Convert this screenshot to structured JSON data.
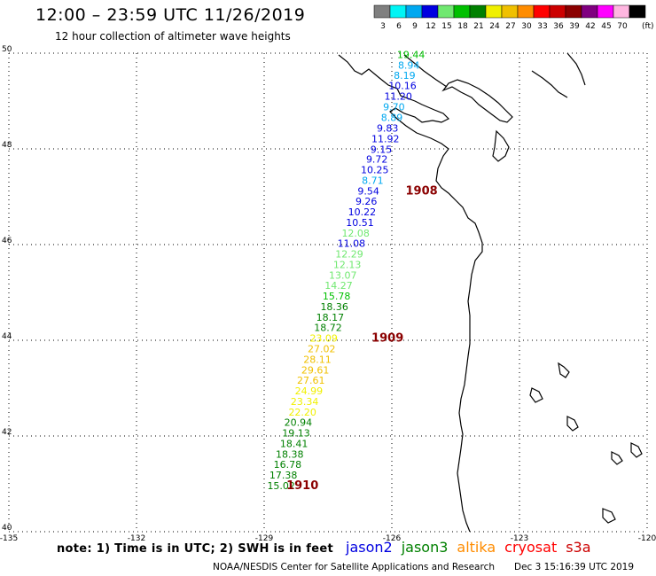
{
  "header": {
    "title": "12:00 – 23:59 UTC 11/26/2019",
    "subtitle": "12 hour collection of altimeter wave heights"
  },
  "colorbar": {
    "unit": "(ft)",
    "bins": [
      {
        "label": "3",
        "color": "#7f7f7f"
      },
      {
        "label": "6",
        "color": "#00f5f5"
      },
      {
        "label": "9",
        "color": "#00a8f0"
      },
      {
        "label": "12",
        "color": "#0000e0"
      },
      {
        "label": "15",
        "color": "#70e870"
      },
      {
        "label": "18",
        "color": "#00c000"
      },
      {
        "label": "21",
        "color": "#008000"
      },
      {
        "label": "24",
        "color": "#f0f000"
      },
      {
        "label": "27",
        "color": "#f0c000"
      },
      {
        "label": "30",
        "color": "#ff8c00"
      },
      {
        "label": "33",
        "color": "#ff0000"
      },
      {
        "label": "36",
        "color": "#cc0000"
      },
      {
        "label": "39",
        "color": "#8b0000"
      },
      {
        "label": "42",
        "color": "#800080"
      },
      {
        "label": "45",
        "color": "#ff00ff"
      },
      {
        "label": "70",
        "color": "#ffb6e0"
      },
      {
        "label": "",
        "color": "#000000"
      }
    ]
  },
  "axes": {
    "lon_ticks": [
      "-135",
      "-132",
      "-129",
      "-126",
      "-123",
      "-120"
    ],
    "lat_ticks": [
      "40",
      "42",
      "44",
      "46",
      "48",
      "50"
    ],
    "lon_range": [
      -135,
      -120
    ],
    "lat_range": [
      40,
      50
    ]
  },
  "observations": [
    {
      "v": "19.44",
      "lon": -125.55,
      "lat": 49.9,
      "color": "#00c000"
    },
    {
      "v": "8.94",
      "lon": -125.6,
      "lat": 49.68,
      "color": "#00a8f0"
    },
    {
      "v": "8.19",
      "lon": -125.7,
      "lat": 49.46,
      "color": "#00a8f0"
    },
    {
      "v": "10.16",
      "lon": -125.75,
      "lat": 49.25,
      "color": "#0000e0"
    },
    {
      "v": "11.20",
      "lon": -125.85,
      "lat": 49.03,
      "color": "#0000e0"
    },
    {
      "v": "9.70",
      "lon": -125.95,
      "lat": 48.81,
      "color": "#00a8f0"
    },
    {
      "v": "8.89",
      "lon": -126.0,
      "lat": 48.58,
      "color": "#00a8f0"
    },
    {
      "v": "9.83",
      "lon": -126.1,
      "lat": 48.36,
      "color": "#0000e0"
    },
    {
      "v": "11.92",
      "lon": -126.15,
      "lat": 48.14,
      "color": "#0000e0"
    },
    {
      "v": "9.15",
      "lon": -126.25,
      "lat": 47.92,
      "color": "#0000e0"
    },
    {
      "v": "9.72",
      "lon": -126.35,
      "lat": 47.71,
      "color": "#0000e0"
    },
    {
      "v": "10.25",
      "lon": -126.4,
      "lat": 47.49,
      "color": "#0000e0"
    },
    {
      "v": "8.71",
      "lon": -126.45,
      "lat": 47.27,
      "color": "#00a8f0"
    },
    {
      "v": "9.54",
      "lon": -126.55,
      "lat": 47.05,
      "color": "#0000e0"
    },
    {
      "v": "9.26",
      "lon": -126.6,
      "lat": 46.83,
      "color": "#0000e0"
    },
    {
      "v": "10.22",
      "lon": -126.7,
      "lat": 46.61,
      "color": "#0000e0"
    },
    {
      "v": "10.51",
      "lon": -126.75,
      "lat": 46.39,
      "color": "#0000e0"
    },
    {
      "v": "12.08",
      "lon": -126.85,
      "lat": 46.17,
      "color": "#70e870"
    },
    {
      "v": "11.08",
      "lon": -126.95,
      "lat": 45.95,
      "color": "#0000e0"
    },
    {
      "v": "12.29",
      "lon": -127.0,
      "lat": 45.73,
      "color": "#70e870"
    },
    {
      "v": "12.13",
      "lon": -127.05,
      "lat": 45.51,
      "color": "#70e870"
    },
    {
      "v": "13.07",
      "lon": -127.15,
      "lat": 45.29,
      "color": "#70e870"
    },
    {
      "v": "14.27",
      "lon": -127.25,
      "lat": 45.07,
      "color": "#70e870"
    },
    {
      "v": "15.78",
      "lon": -127.3,
      "lat": 44.85,
      "color": "#00c000"
    },
    {
      "v": "18.36",
      "lon": -127.35,
      "lat": 44.63,
      "color": "#008000"
    },
    {
      "v": "18.17",
      "lon": -127.45,
      "lat": 44.41,
      "color": "#008000"
    },
    {
      "v": "18.72",
      "lon": -127.5,
      "lat": 44.19,
      "color": "#008000"
    },
    {
      "v": "23.09",
      "lon": -127.6,
      "lat": 43.97,
      "color": "#f0f000"
    },
    {
      "v": "27.02",
      "lon": -127.65,
      "lat": 43.75,
      "color": "#f0c000"
    },
    {
      "v": "28.11",
      "lon": -127.75,
      "lat": 43.53,
      "color": "#f0c000"
    },
    {
      "v": "29.61",
      "lon": -127.8,
      "lat": 43.31,
      "color": "#f0c000"
    },
    {
      "v": "27.61",
      "lon": -127.9,
      "lat": 43.09,
      "color": "#f0c000"
    },
    {
      "v": "24.99",
      "lon": -127.95,
      "lat": 42.87,
      "color": "#f0f000"
    },
    {
      "v": "23.34",
      "lon": -128.05,
      "lat": 42.65,
      "color": "#f0f000"
    },
    {
      "v": "22.20",
      "lon": -128.1,
      "lat": 42.43,
      "color": "#f0f000"
    },
    {
      "v": "20.94",
      "lon": -128.2,
      "lat": 42.21,
      "color": "#008000"
    },
    {
      "v": "19.13",
      "lon": -128.25,
      "lat": 41.99,
      "color": "#008000"
    },
    {
      "v": "18.41",
      "lon": -128.3,
      "lat": 41.77,
      "color": "#008000"
    },
    {
      "v": "18.38",
      "lon": -128.4,
      "lat": 41.55,
      "color": "#008000"
    },
    {
      "v": "16.78",
      "lon": -128.45,
      "lat": 41.33,
      "color": "#008000"
    },
    {
      "v": "17.38",
      "lon": -128.55,
      "lat": 41.11,
      "color": "#008000"
    },
    {
      "v": "15.02",
      "lon": -128.6,
      "lat": 40.89,
      "color": "#008000"
    }
  ],
  "time_markers": [
    {
      "label": "1908",
      "lon": -125.3,
      "lat": 47.05,
      "color": "#8b0000"
    },
    {
      "label": "1909",
      "lon": -126.1,
      "lat": 43.97,
      "color": "#8b0000"
    },
    {
      "label": "1910",
      "lon": -128.1,
      "lat": 40.89,
      "color": "#8b0000"
    }
  ],
  "footer": {
    "note": "note:  1) Time is in UTC;  2) SWH is in feet",
    "missions": [
      {
        "label": "jason2",
        "color": "#0000e0"
      },
      {
        "label": "jason3",
        "color": "#008000"
      },
      {
        "label": "altika",
        "color": "#ff8c00"
      },
      {
        "label": "cryosat",
        "color": "#ff0000"
      },
      {
        "label": "s3a",
        "color": "#cc0000"
      }
    ],
    "credit": "NOAA/NESDIS Center for Satellite Applications and Research",
    "timestamp": "Dec  3 15:16:39 UTC 2019"
  }
}
